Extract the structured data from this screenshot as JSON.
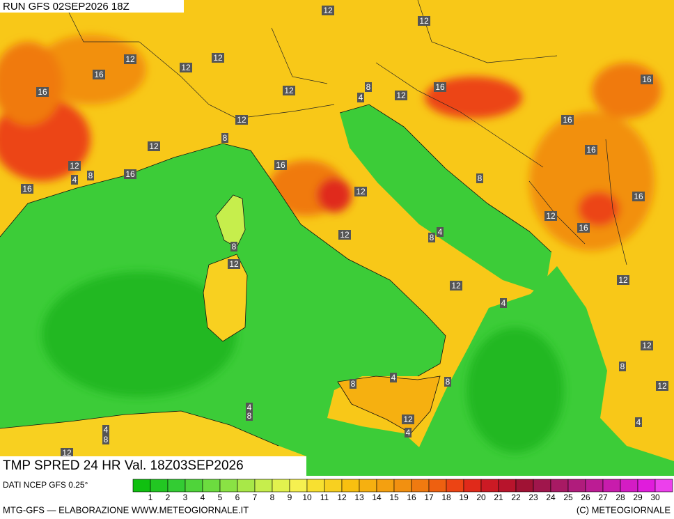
{
  "header": {
    "run": "RUN GFS 02SEP2026 18Z"
  },
  "map": {
    "contour_labels": [
      "12",
      "12",
      "12",
      "12",
      "12",
      "16",
      "16",
      "12",
      "8",
      "4",
      "12",
      "16",
      "16",
      "12",
      "16",
      "8",
      "12",
      "16",
      "12",
      "8",
      "4",
      "16",
      "16",
      "16",
      "12",
      "8",
      "16",
      "12",
      "16",
      "12",
      "4",
      "8",
      "8",
      "12",
      "12",
      "12",
      "4",
      "12",
      "8",
      "4",
      "8",
      "8",
      "12",
      "4",
      "8",
      "12",
      "4",
      "4",
      "8",
      "4",
      "12"
    ]
  },
  "footer": {
    "title": "TMP SPRED 24 HR Val. 18Z03SEP2026",
    "source": "DATI NCEP GFS 0.25°",
    "credit": "MTG-GFS — ELABORAZIONE WWW.METEOGIORNALE.IT",
    "copyright": "(C) METEOGIORNALE"
  },
  "colorbar": {
    "ticks": [
      1,
      2,
      3,
      4,
      5,
      6,
      7,
      8,
      9,
      10,
      11,
      12,
      13,
      14,
      15,
      16,
      17,
      18,
      19,
      20,
      21,
      22,
      23,
      24,
      25,
      26,
      27,
      28,
      29,
      30
    ],
    "colors": [
      "#10c010",
      "#22c722",
      "#33cc33",
      "#4fd43a",
      "#6cdc3f",
      "#8ae244",
      "#a8e848",
      "#c6ee4c",
      "#e2f24e",
      "#f6f050",
      "#f8e030",
      "#f8d020",
      "#f8c010",
      "#f6b010",
      "#f4a010",
      "#f29010",
      "#f07a10",
      "#ee6010",
      "#ec4414",
      "#e02a1a",
      "#cc1a24",
      "#b8142c",
      "#a01234",
      "#a0164c",
      "#a81a64",
      "#b01c7c",
      "#bc1c94",
      "#c81cac",
      "#d41cc4",
      "#e01cdc",
      "#ec40ec"
    ]
  }
}
